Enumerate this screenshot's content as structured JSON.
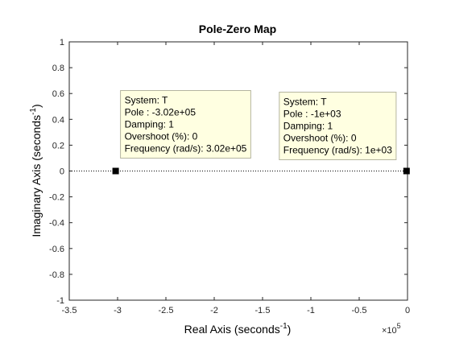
{
  "chart_data": {
    "type": "scatter",
    "title": "Pole-Zero Map",
    "xlabel": "Real Axis (seconds",
    "xlabel_sup": "-1",
    "xlabel_tail": ")",
    "ylabel": "Imaginary Axis (seconds",
    "ylabel_sup": "-1",
    "ylabel_tail": ")",
    "x_exponent_base": "×10",
    "x_exponent_power": "5",
    "x_scale_factor": 100000,
    "xlim": [
      -3.5,
      0
    ],
    "ylim": [
      -1,
      1
    ],
    "xticks": [
      "-3.5",
      "-3",
      "-2.5",
      "-2",
      "-1.5",
      "-1",
      "-0.5",
      "0"
    ],
    "yticks": [
      "1",
      "0.8",
      "0.6",
      "0.4",
      "0.2",
      "0",
      "-0.2",
      "-0.4",
      "-0.6",
      "-0.8",
      "-1"
    ],
    "poles": [
      {
        "x": -302000,
        "y": 0,
        "selected": true
      },
      {
        "x": -1000,
        "y": 0,
        "selected": true
      }
    ],
    "datatips": [
      {
        "pole_index": 0,
        "lines": [
          "System: T",
          "Pole : -3.02e+05",
          "Damping: 1",
          "Overshoot (%): 0",
          "Frequency (rad/s): 3.02e+05"
        ]
      },
      {
        "pole_index": 1,
        "lines": [
          "System: T",
          "Pole : -1e+03",
          "Damping: 1",
          "Overshoot (%): 0",
          "Frequency (rad/s): 1e+03"
        ]
      }
    ],
    "grid": false,
    "colors": {
      "pole_marker": "#0072BD",
      "datatip_bg": "#FFFFE1",
      "datatip_border": "#B5B5A0",
      "axis": "#262626"
    }
  }
}
